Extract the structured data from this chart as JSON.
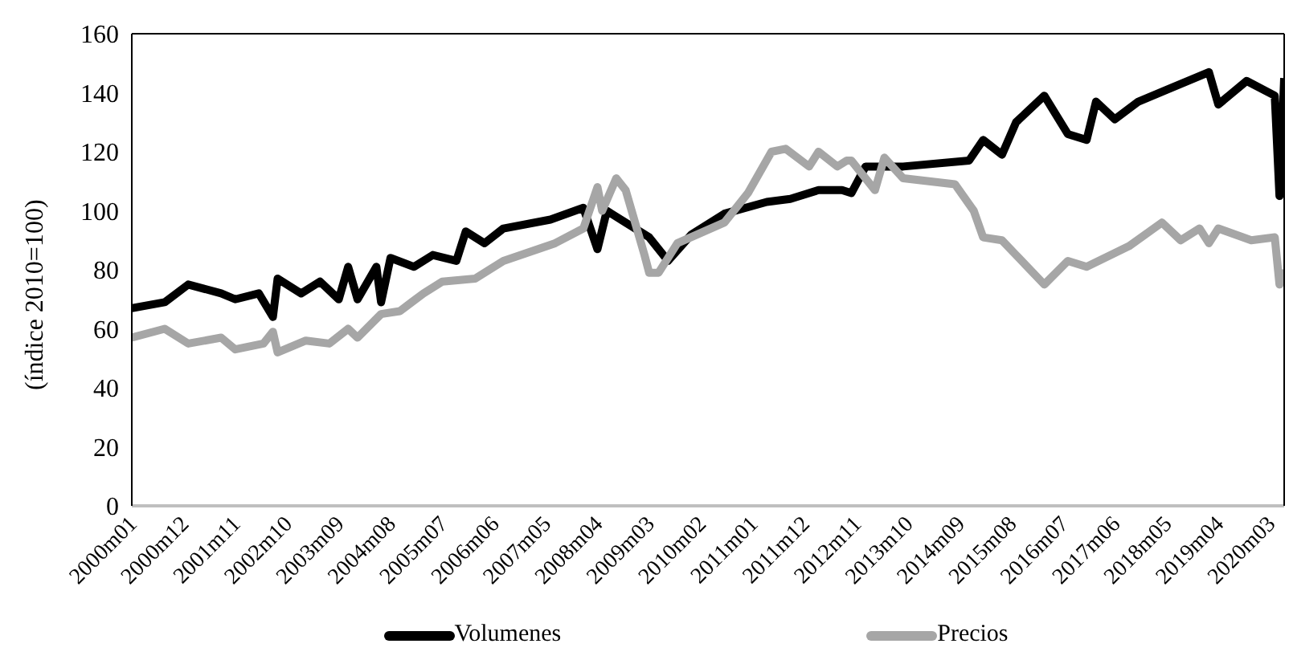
{
  "chart_data": {
    "type": "line",
    "ylabel": "(índice 2010=100)",
    "xlim": [
      "2000-01",
      "2020-06"
    ],
    "xticks": [
      {
        "value": "2000-01",
        "label": "2000m01"
      },
      {
        "value": "2000-12",
        "label": "2000m12"
      },
      {
        "value": "2001-11",
        "label": "2001m11"
      },
      {
        "value": "2002-10",
        "label": "2002m10"
      },
      {
        "value": "2003-09",
        "label": "2003m09"
      },
      {
        "value": "2004-08",
        "label": "2004m08"
      },
      {
        "value": "2005-07",
        "label": "2005m07"
      },
      {
        "value": "2006-06",
        "label": "2006m06"
      },
      {
        "value": "2007-05",
        "label": "2007m05"
      },
      {
        "value": "2008-04",
        "label": "2008m04"
      },
      {
        "value": "2009-03",
        "label": "2009m03"
      },
      {
        "value": "2010-02",
        "label": "2010m02"
      },
      {
        "value": "2011-01",
        "label": "2011m01"
      },
      {
        "value": "2011-12",
        "label": "2011m12"
      },
      {
        "value": "2012-11",
        "label": "2012m11"
      },
      {
        "value": "2013-10",
        "label": "2013m10"
      },
      {
        "value": "2014-09",
        "label": "2014m09"
      },
      {
        "value": "2015-08",
        "label": "2015m08"
      },
      {
        "value": "2016-07",
        "label": "2016m07"
      },
      {
        "value": "2017-06",
        "label": "2017m06"
      },
      {
        "value": "2018-05",
        "label": "2018m05"
      },
      {
        "value": "2019-04",
        "label": "2019m04"
      },
      {
        "value": "2020-03",
        "label": "2020m03"
      }
    ],
    "ylim": [
      0,
      160
    ],
    "yticks": [
      0,
      20,
      40,
      60,
      80,
      100,
      120,
      140,
      160
    ],
    "legend": "bottom",
    "marker": "none",
    "line_style": "solid",
    "series": [
      {
        "name": "Volumenes",
        "color": "#000000",
        "x": [
          "2000-01",
          "2000-08",
          "2001-01",
          "2001-08",
          "2001-11",
          "2002-04",
          "2002-07",
          "2002-08",
          "2003-01",
          "2003-05",
          "2003-09",
          "2003-11",
          "2004-01",
          "2004-05",
          "2004-06",
          "2004-08",
          "2005-01",
          "2005-05",
          "2005-10",
          "2005-12",
          "2006-04",
          "2006-08",
          "2007-06",
          "2008-01",
          "2008-04",
          "2008-06",
          "2008-10",
          "2009-03",
          "2009-07",
          "2009-12",
          "2010-07",
          "2011-04",
          "2011-09",
          "2012-03",
          "2012-08",
          "2012-10",
          "2013-01",
          "2013-09",
          "2014-11",
          "2015-02",
          "2015-06",
          "2015-09",
          "2016-03",
          "2016-08",
          "2016-12",
          "2017-02",
          "2017-06",
          "2017-11",
          "2018-05",
          "2019-02",
          "2019-04",
          "2019-10",
          "2020-04",
          "2020-05",
          "2020-06"
        ],
        "values": [
          67,
          69,
          75,
          72,
          70,
          72,
          64,
          77,
          72,
          76,
          70,
          81,
          70,
          81,
          69,
          84,
          81,
          85,
          83,
          93,
          89,
          94,
          97,
          101,
          87,
          100,
          96,
          91,
          83,
          92,
          99,
          103,
          104,
          107,
          107,
          106,
          115,
          115,
          117,
          124,
          119,
          130,
          139,
          126,
          124,
          137,
          131,
          137,
          141,
          147,
          136,
          144,
          139,
          105,
          145
        ]
      },
      {
        "name": "Precios",
        "color": "#a6a6a6",
        "x": [
          "2000-01",
          "2000-08",
          "2001-01",
          "2001-08",
          "2001-11",
          "2002-05",
          "2002-07",
          "2002-08",
          "2003-02",
          "2003-07",
          "2003-11",
          "2004-01",
          "2004-06",
          "2004-10",
          "2005-03",
          "2005-07",
          "2006-02",
          "2006-08",
          "2007-07",
          "2008-01",
          "2008-04",
          "2008-05",
          "2008-08",
          "2008-10",
          "2009-02",
          "2009-03",
          "2009-05",
          "2009-09",
          "2010-07",
          "2010-12",
          "2011-05",
          "2011-08",
          "2012-01",
          "2012-03",
          "2012-07",
          "2012-09",
          "2012-10",
          "2013-03",
          "2013-05",
          "2013-09",
          "2014-08",
          "2014-12",
          "2015-02",
          "2015-06",
          "2015-09",
          "2016-03",
          "2016-08",
          "2016-12",
          "2017-09",
          "2018-04",
          "2018-08",
          "2018-12",
          "2019-02",
          "2019-04",
          "2019-11",
          "2020-04",
          "2020-05",
          "2020-06"
        ],
        "values": [
          57,
          60,
          55,
          57,
          53,
          55,
          59,
          52,
          56,
          55,
          60,
          57,
          65,
          66,
          72,
          76,
          77,
          83,
          89,
          94,
          108,
          100,
          111,
          107,
          85,
          79,
          79,
          89,
          96,
          106,
          120,
          121,
          115,
          120,
          115,
          117,
          117,
          107,
          118,
          111,
          109,
          100,
          91,
          90,
          85,
          75,
          83,
          81,
          88,
          96,
          90,
          94,
          89,
          94,
          90,
          91,
          75,
          80
        ]
      }
    ]
  }
}
